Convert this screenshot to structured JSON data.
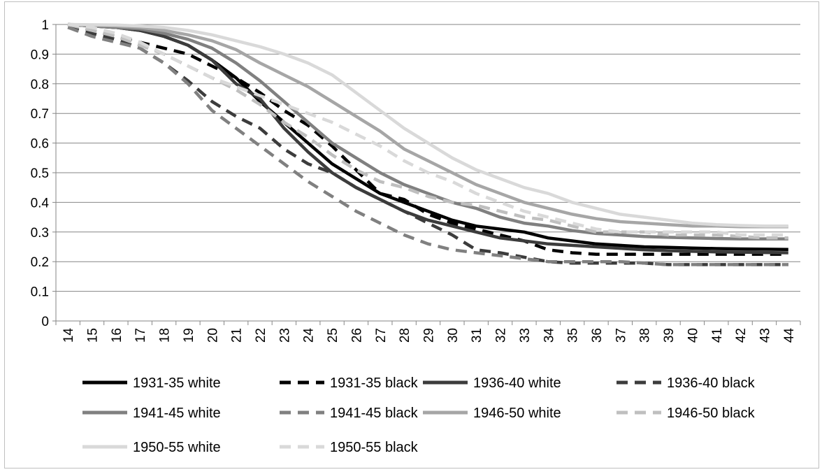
{
  "chart_data": {
    "type": "line",
    "title": "",
    "xlabel": "",
    "ylabel": "",
    "x": [
      14,
      15,
      16,
      17,
      18,
      19,
      20,
      21,
      22,
      23,
      24,
      25,
      26,
      27,
      28,
      29,
      30,
      31,
      32,
      33,
      34,
      35,
      36,
      37,
      38,
      39,
      40,
      41,
      42,
      43,
      44
    ],
    "ylim": [
      0,
      1
    ],
    "yticks": [
      "0",
      "0.1",
      "0.2",
      "0.3",
      "0.4",
      "0.5",
      "0.6",
      "0.7",
      "0.8",
      "0.9",
      "1"
    ],
    "xticks": [
      "14",
      "15",
      "16",
      "17",
      "18",
      "19",
      "20",
      "21",
      "22",
      "23",
      "24",
      "25",
      "26",
      "27",
      "28",
      "29",
      "30",
      "31",
      "32",
      "33",
      "34",
      "35",
      "36",
      "37",
      "38",
      "39",
      "40",
      "41",
      "42",
      "43",
      "44"
    ],
    "grid": "horizontal",
    "legend_position": "bottom",
    "series": [
      {
        "name": "1931-35 white",
        "color": "#000000",
        "dash": "solid",
        "values": [
          1.0,
          0.995,
          0.99,
          0.98,
          0.96,
          0.93,
          0.88,
          0.82,
          0.74,
          0.67,
          0.6,
          0.53,
          0.48,
          0.43,
          0.4,
          0.37,
          0.34,
          0.32,
          0.31,
          0.3,
          0.28,
          0.27,
          0.26,
          0.255,
          0.25,
          0.248,
          0.246,
          0.244,
          0.243,
          0.242,
          0.241
        ]
      },
      {
        "name": "1931-35 black",
        "color": "#000000",
        "dash": "dashed",
        "values": [
          1.0,
          0.98,
          0.96,
          0.94,
          0.92,
          0.9,
          0.86,
          0.82,
          0.77,
          0.71,
          0.66,
          0.59,
          0.51,
          0.43,
          0.41,
          0.36,
          0.33,
          0.31,
          0.29,
          0.27,
          0.24,
          0.23,
          0.225,
          0.225,
          0.225,
          0.225,
          0.225,
          0.225,
          0.225,
          0.225,
          0.225
        ]
      },
      {
        "name": "1936-40 white",
        "color": "#3c3c3c",
        "dash": "solid",
        "values": [
          1.0,
          0.995,
          0.99,
          0.98,
          0.96,
          0.93,
          0.88,
          0.8,
          0.75,
          0.65,
          0.57,
          0.5,
          0.45,
          0.41,
          0.37,
          0.34,
          0.32,
          0.3,
          0.28,
          0.27,
          0.26,
          0.255,
          0.25,
          0.245,
          0.24,
          0.237,
          0.235,
          0.233,
          0.232,
          0.231,
          0.23
        ]
      },
      {
        "name": "1936-40 black",
        "color": "#3c3c3c",
        "dash": "dashed",
        "values": [
          0.99,
          0.97,
          0.95,
          0.92,
          0.87,
          0.81,
          0.74,
          0.69,
          0.65,
          0.58,
          0.53,
          0.5,
          0.45,
          0.41,
          0.37,
          0.33,
          0.29,
          0.24,
          0.23,
          0.215,
          0.2,
          0.195,
          0.195,
          0.195,
          0.195,
          0.19,
          0.19,
          0.19,
          0.19,
          0.19,
          0.19
        ]
      },
      {
        "name": "1941-45 white",
        "color": "#808080",
        "dash": "solid",
        "values": [
          1.0,
          0.995,
          0.99,
          0.985,
          0.97,
          0.95,
          0.92,
          0.87,
          0.81,
          0.74,
          0.67,
          0.6,
          0.55,
          0.5,
          0.46,
          0.43,
          0.4,
          0.38,
          0.35,
          0.33,
          0.32,
          0.305,
          0.295,
          0.29,
          0.285,
          0.282,
          0.28,
          0.278,
          0.277,
          0.277,
          0.277
        ]
      },
      {
        "name": "1941-45 black",
        "color": "#808080",
        "dash": "dashed",
        "values": [
          0.99,
          0.96,
          0.94,
          0.92,
          0.87,
          0.8,
          0.71,
          0.65,
          0.59,
          0.53,
          0.47,
          0.42,
          0.37,
          0.33,
          0.29,
          0.26,
          0.24,
          0.23,
          0.22,
          0.21,
          0.2,
          0.2,
          0.2,
          0.2,
          0.195,
          0.19,
          0.19,
          0.19,
          0.19,
          0.19,
          0.19
        ]
      },
      {
        "name": "1946-50 white",
        "color": "#a6a6a6",
        "dash": "solid",
        "values": [
          1.0,
          0.998,
          0.995,
          0.99,
          0.98,
          0.965,
          0.945,
          0.915,
          0.87,
          0.83,
          0.79,
          0.74,
          0.69,
          0.64,
          0.58,
          0.54,
          0.5,
          0.46,
          0.43,
          0.4,
          0.38,
          0.36,
          0.345,
          0.335,
          0.33,
          0.325,
          0.32,
          0.32,
          0.318,
          0.318,
          0.318
        ]
      },
      {
        "name": "1946-50 black",
        "color": "#bfbfbf",
        "dash": "dashed",
        "values": [
          1.0,
          0.98,
          0.96,
          0.93,
          0.9,
          0.86,
          0.82,
          0.78,
          0.73,
          0.67,
          0.62,
          0.56,
          0.51,
          0.47,
          0.45,
          0.42,
          0.4,
          0.39,
          0.37,
          0.35,
          0.34,
          0.32,
          0.3,
          0.3,
          0.3,
          0.29,
          0.29,
          0.29,
          0.285,
          0.28,
          0.28
        ]
      },
      {
        "name": "1950-55 white",
        "color": "#d9d9d9",
        "dash": "solid",
        "values": [
          1.0,
          0.999,
          0.998,
          0.995,
          0.99,
          0.98,
          0.965,
          0.945,
          0.925,
          0.9,
          0.87,
          0.83,
          0.77,
          0.71,
          0.65,
          0.6,
          0.55,
          0.51,
          0.48,
          0.45,
          0.43,
          0.4,
          0.38,
          0.36,
          0.35,
          0.34,
          0.33,
          0.325,
          0.322,
          0.32,
          0.32
        ]
      },
      {
        "name": "1950-55 black",
        "color": "#d9d9d9",
        "dash": "dashed",
        "values": [
          1.0,
          0.99,
          0.97,
          0.94,
          0.9,
          0.86,
          0.82,
          0.79,
          0.76,
          0.73,
          0.7,
          0.67,
          0.63,
          0.59,
          0.54,
          0.5,
          0.47,
          0.43,
          0.4,
          0.37,
          0.35,
          0.33,
          0.31,
          0.3,
          0.3,
          0.3,
          0.3,
          0.3,
          0.29,
          0.29,
          0.29
        ]
      }
    ]
  }
}
